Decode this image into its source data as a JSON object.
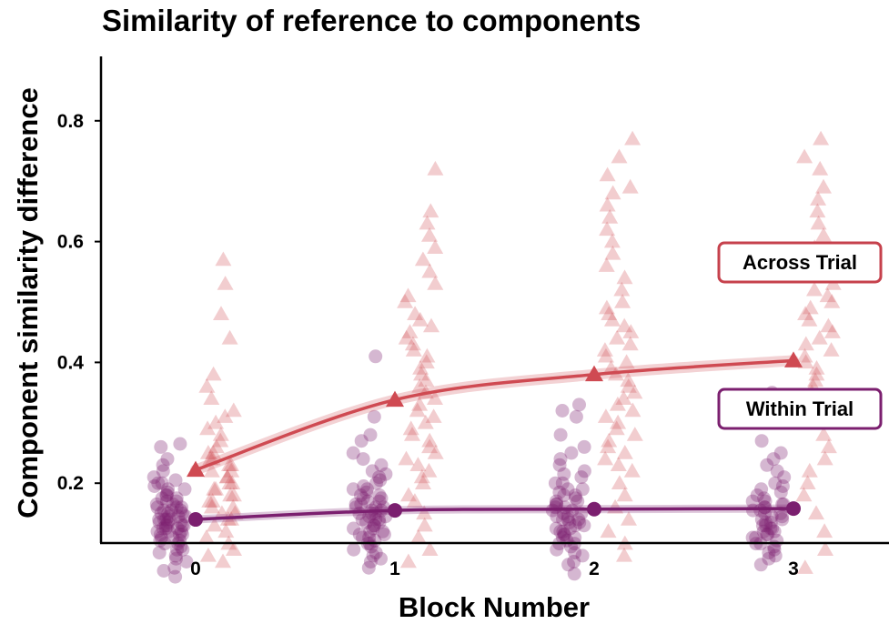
{
  "chart_data": {
    "type": "scatter",
    "title": "Similarity of reference to components",
    "xlabel": "Block Number",
    "ylabel": "Component similarity difference",
    "x_ticks": [
      "0",
      "1",
      "2",
      "3"
    ],
    "y_ticks": [
      "0.2",
      "0.4",
      "0.6",
      "0.8"
    ],
    "xlim": [
      -0.45,
      3.45
    ],
    "ylim": [
      0.0,
      0.8
    ],
    "grid": false,
    "colors": {
      "within": "#7B1F6F",
      "across": "#CF4A52"
    },
    "series": [
      {
        "name": "Within Trial",
        "marker": "circle",
        "x": [
          0,
          1,
          2,
          3
        ],
        "means": [
          0.14,
          0.155,
          0.157,
          0.158
        ],
        "points": {
          "0": [
            0.045,
            0.055,
            0.06,
            0.07,
            0.075,
            0.08,
            0.085,
            0.09,
            0.09,
            0.095,
            0.1,
            0.1,
            0.105,
            0.105,
            0.11,
            0.11,
            0.115,
            0.115,
            0.115,
            0.12,
            0.12,
            0.12,
            0.125,
            0.125,
            0.125,
            0.13,
            0.13,
            0.13,
            0.13,
            0.135,
            0.135,
            0.135,
            0.14,
            0.14,
            0.14,
            0.14,
            0.145,
            0.145,
            0.145,
            0.15,
            0.15,
            0.15,
            0.155,
            0.155,
            0.155,
            0.16,
            0.16,
            0.16,
            0.165,
            0.165,
            0.17,
            0.17,
            0.175,
            0.175,
            0.18,
            0.18,
            0.185,
            0.19,
            0.19,
            0.195,
            0.2,
            0.2,
            0.205,
            0.21,
            0.22,
            0.23,
            0.24,
            0.26,
            0.265
          ],
          "1": [
            0.06,
            0.07,
            0.075,
            0.08,
            0.085,
            0.09,
            0.095,
            0.1,
            0.1,
            0.105,
            0.11,
            0.11,
            0.115,
            0.115,
            0.12,
            0.12,
            0.125,
            0.125,
            0.13,
            0.13,
            0.135,
            0.135,
            0.14,
            0.14,
            0.14,
            0.145,
            0.145,
            0.15,
            0.15,
            0.15,
            0.155,
            0.155,
            0.16,
            0.16,
            0.16,
            0.165,
            0.165,
            0.17,
            0.17,
            0.175,
            0.175,
            0.18,
            0.18,
            0.185,
            0.19,
            0.19,
            0.195,
            0.2,
            0.205,
            0.21,
            0.215,
            0.22,
            0.23,
            0.24,
            0.25,
            0.27,
            0.28,
            0.31,
            0.41
          ],
          "2": [
            0.05,
            0.065,
            0.07,
            0.08,
            0.085,
            0.09,
            0.095,
            0.1,
            0.1,
            0.105,
            0.11,
            0.11,
            0.115,
            0.115,
            0.12,
            0.12,
            0.125,
            0.125,
            0.13,
            0.13,
            0.135,
            0.135,
            0.14,
            0.14,
            0.14,
            0.145,
            0.145,
            0.15,
            0.15,
            0.155,
            0.155,
            0.16,
            0.16,
            0.165,
            0.165,
            0.17,
            0.17,
            0.175,
            0.18,
            0.18,
            0.185,
            0.19,
            0.19,
            0.2,
            0.2,
            0.21,
            0.215,
            0.22,
            0.23,
            0.24,
            0.25,
            0.26,
            0.28,
            0.31,
            0.32,
            0.33
          ],
          "3": [
            0.065,
            0.075,
            0.08,
            0.085,
            0.09,
            0.095,
            0.1,
            0.1,
            0.105,
            0.11,
            0.11,
            0.115,
            0.115,
            0.12,
            0.12,
            0.125,
            0.125,
            0.13,
            0.13,
            0.135,
            0.135,
            0.14,
            0.14,
            0.145,
            0.145,
            0.15,
            0.15,
            0.155,
            0.155,
            0.16,
            0.16,
            0.165,
            0.165,
            0.17,
            0.17,
            0.175,
            0.18,
            0.185,
            0.19,
            0.195,
            0.2,
            0.21,
            0.22,
            0.23,
            0.24,
            0.25,
            0.27,
            0.3,
            0.33,
            0.35
          ]
        }
      },
      {
        "name": "Across Trial",
        "marker": "triangle",
        "x": [
          0,
          1,
          2,
          3
        ],
        "means": [
          0.222,
          0.338,
          0.38,
          0.403
        ],
        "points": {
          "0": [
            0.07,
            0.08,
            0.09,
            0.1,
            0.11,
            0.12,
            0.13,
            0.14,
            0.14,
            0.15,
            0.15,
            0.16,
            0.16,
            0.17,
            0.17,
            0.18,
            0.18,
            0.19,
            0.19,
            0.2,
            0.2,
            0.21,
            0.21,
            0.22,
            0.22,
            0.23,
            0.23,
            0.24,
            0.24,
            0.25,
            0.25,
            0.26,
            0.27,
            0.28,
            0.29,
            0.3,
            0.31,
            0.32,
            0.34,
            0.36,
            0.38,
            0.44,
            0.48,
            0.53,
            0.57
          ],
          "1": [
            0.07,
            0.09,
            0.11,
            0.13,
            0.15,
            0.17,
            0.18,
            0.2,
            0.21,
            0.22,
            0.23,
            0.24,
            0.25,
            0.26,
            0.27,
            0.28,
            0.29,
            0.3,
            0.31,
            0.32,
            0.33,
            0.34,
            0.35,
            0.36,
            0.37,
            0.38,
            0.39,
            0.4,
            0.41,
            0.42,
            0.43,
            0.44,
            0.45,
            0.46,
            0.47,
            0.48,
            0.5,
            0.51,
            0.53,
            0.55,
            0.57,
            0.59,
            0.61,
            0.63,
            0.65,
            0.72
          ],
          "2": [
            0.08,
            0.1,
            0.12,
            0.14,
            0.16,
            0.18,
            0.2,
            0.22,
            0.23,
            0.24,
            0.25,
            0.26,
            0.27,
            0.28,
            0.29,
            0.3,
            0.31,
            0.32,
            0.33,
            0.34,
            0.35,
            0.36,
            0.37,
            0.38,
            0.39,
            0.4,
            0.41,
            0.42,
            0.43,
            0.44,
            0.45,
            0.46,
            0.47,
            0.48,
            0.49,
            0.5,
            0.52,
            0.54,
            0.56,
            0.58,
            0.6,
            0.62,
            0.64,
            0.66,
            0.68,
            0.69,
            0.71,
            0.74,
            0.77
          ],
          "3": [
            0.06,
            0.09,
            0.12,
            0.15,
            0.18,
            0.2,
            0.22,
            0.24,
            0.26,
            0.28,
            0.3,
            0.31,
            0.32,
            0.33,
            0.34,
            0.35,
            0.36,
            0.37,
            0.38,
            0.39,
            0.4,
            0.41,
            0.42,
            0.43,
            0.44,
            0.45,
            0.46,
            0.47,
            0.48,
            0.49,
            0.5,
            0.51,
            0.52,
            0.53,
            0.55,
            0.57,
            0.59,
            0.61,
            0.63,
            0.65,
            0.67,
            0.69,
            0.72,
            0.74,
            0.77
          ]
        }
      }
    ],
    "legend": [
      {
        "label": "Across Trial",
        "placement": "right"
      },
      {
        "label": "Within Trial",
        "placement": "right"
      }
    ]
  }
}
